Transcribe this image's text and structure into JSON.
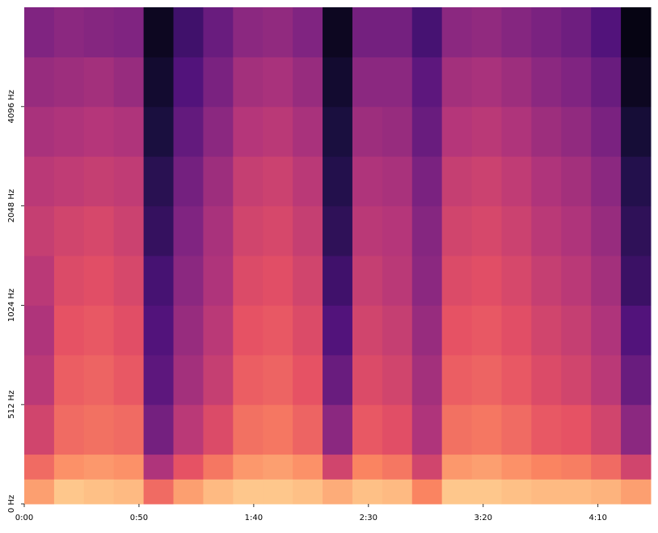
{
  "chart_data": {
    "type": "spectrogram",
    "colormap": "magma",
    "clim": [
      -70,
      0
    ],
    "yscale": "symlog",
    "linthresh": 512,
    "base": 2,
    "time_edges": [
      0,
      13,
      26,
      39,
      52,
      65,
      78,
      91,
      104,
      117,
      130,
      143,
      156,
      169,
      182,
      195,
      208,
      221,
      234,
      247,
      260,
      273
    ],
    "freq_edges": [
      0,
      128,
      256,
      512,
      724,
      1024,
      1448,
      2048,
      2896,
      4096,
      5793,
      8192
    ],
    "values": [
      [
        -14,
        -22,
        -30,
        -34,
        -36,
        -34,
        -32,
        -34,
        -37,
        -40,
        -44
      ],
      [
        -8,
        -16,
        -22,
        -24,
        -26,
        -28,
        -30,
        -33,
        -36,
        -39,
        -42
      ],
      [
        -9,
        -15,
        -21,
        -23,
        -25,
        -27,
        -29,
        -32,
        -35,
        -38,
        -43
      ],
      [
        -10,
        -16,
        -22,
        -25,
        -27,
        -29,
        -31,
        -33,
        -36,
        -40,
        -44
      ],
      [
        -22,
        -36,
        -46,
        -50,
        -52,
        -54,
        -57,
        -59,
        -62,
        -64,
        -66
      ],
      [
        -14,
        -26,
        -34,
        -38,
        -40,
        -42,
        -44,
        -46,
        -49,
        -52,
        -55
      ],
      [
        -10,
        -20,
        -28,
        -32,
        -34,
        -36,
        -37,
        -39,
        -42,
        -45,
        -48
      ],
      [
        -8,
        -15,
        -21,
        -24,
        -26,
        -28,
        -30,
        -32,
        -35,
        -38,
        -42
      ],
      [
        -8,
        -14,
        -20,
        -23,
        -25,
        -27,
        -29,
        -31,
        -34,
        -37,
        -41
      ],
      [
        -9,
        -16,
        -23,
        -26,
        -28,
        -30,
        -32,
        -34,
        -37,
        -40,
        -44
      ],
      [
        -12,
        -30,
        -42,
        -48,
        -52,
        -55,
        -58,
        -60,
        -62,
        -64,
        -66
      ],
      [
        -9,
        -18,
        -25,
        -28,
        -30,
        -32,
        -34,
        -36,
        -39,
        -42,
        -46
      ],
      [
        -10,
        -20,
        -27,
        -30,
        -32,
        -34,
        -35,
        -37,
        -40,
        -42,
        -46
      ],
      [
        -18,
        -30,
        -36,
        -38,
        -40,
        -42,
        -43,
        -45,
        -48,
        -50,
        -54
      ],
      [
        -8,
        -15,
        -21,
        -24,
        -26,
        -28,
        -30,
        -32,
        -35,
        -38,
        -42
      ],
      [
        -8,
        -14,
        -20,
        -23,
        -25,
        -27,
        -29,
        -31,
        -34,
        -37,
        -41
      ],
      [
        -9,
        -16,
        -22,
        -25,
        -27,
        -29,
        -31,
        -33,
        -36,
        -39,
        -43
      ],
      [
        -10,
        -18,
        -25,
        -28,
        -30,
        -32,
        -34,
        -36,
        -39,
        -42,
        -45
      ],
      [
        -10,
        -19,
        -26,
        -30,
        -32,
        -34,
        -36,
        -38,
        -41,
        -44,
        -47
      ],
      [
        -11,
        -22,
        -30,
        -34,
        -36,
        -38,
        -40,
        -42,
        -45,
        -48,
        -52
      ],
      [
        -14,
        -30,
        -42,
        -48,
        -52,
        -56,
        -58,
        -60,
        -63,
        -66,
        -68
      ]
    ],
    "xlim": [
      0,
      273
    ],
    "xticks": [
      {
        "value": 0,
        "label": "0:00"
      },
      {
        "value": 50,
        "label": "0:50"
      },
      {
        "value": 100,
        "label": "1:40"
      },
      {
        "value": 150,
        "label": "2:30"
      },
      {
        "value": 200,
        "label": "3:20"
      },
      {
        "value": 250,
        "label": "4:10"
      }
    ],
    "ylim": [
      0,
      8192
    ],
    "yticks": [
      {
        "value": 0,
        "label": "0 Hz"
      },
      {
        "value": 512,
        "label": "512 Hz"
      },
      {
        "value": 1024,
        "label": "1024 Hz"
      },
      {
        "value": 2048,
        "label": "2048 Hz"
      },
      {
        "value": 4096,
        "label": "4096 Hz"
      }
    ]
  }
}
